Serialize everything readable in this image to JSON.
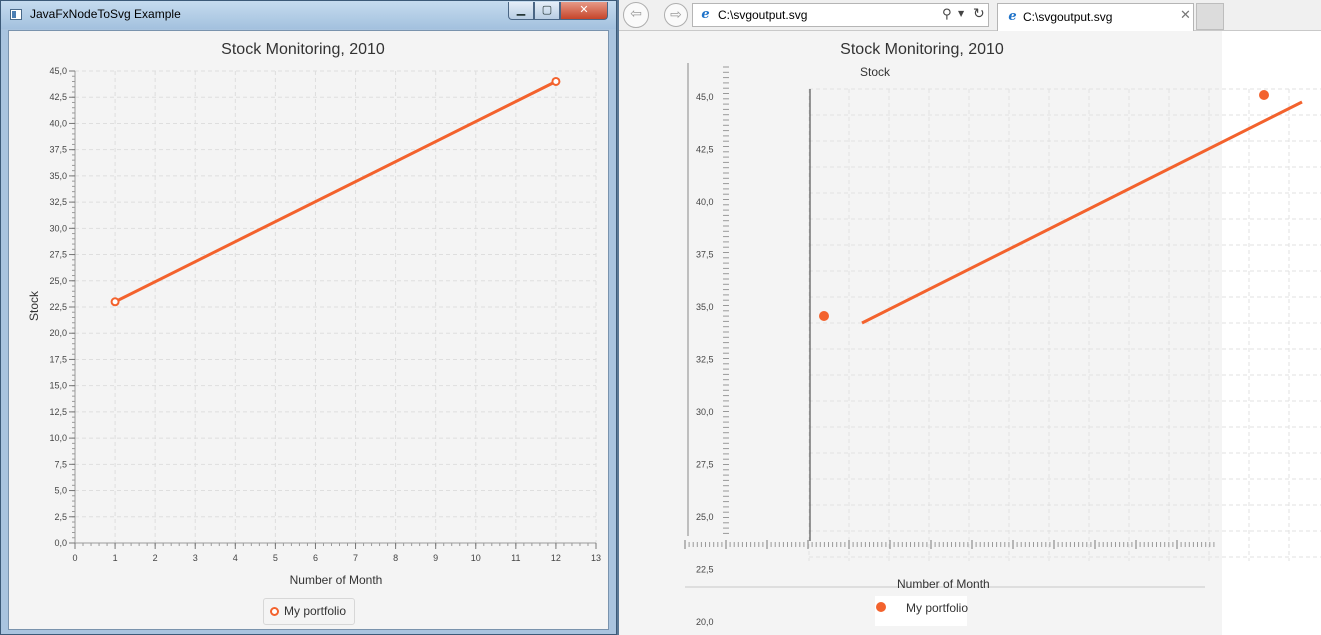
{
  "fx_window": {
    "title": "JavaFxNodeToSvg Example",
    "minimize_glyph": "▁",
    "maximize_glyph": "▢",
    "close_glyph": "✕"
  },
  "fx_chart": {
    "title": "Stock Monitoring, 2010",
    "legend_label": "My portfolio"
  },
  "browser": {
    "back_glyph": "⇦",
    "forward_glyph": "⇨",
    "address": "C:\\svgoutput.svg",
    "tab_title": "C:\\svgoutput.svg",
    "ie_glyph": "e",
    "search_glyph": "⚲",
    "dropdown_glyph": "▼",
    "refresh_glyph": "↻",
    "close_glyph": "✕"
  },
  "svg_render": {
    "title": "Stock Monitoring, 2010",
    "axis_label_top": "Stock",
    "axis_label_bottom": "Number of Month",
    "legend_label": "My portfolio",
    "y_tick_labels": [
      "45,0",
      "42,5",
      "40,0",
      "37,5",
      "35,0",
      "32,5",
      "30,0",
      "27,5",
      "25,0",
      "22,5",
      "20,0"
    ]
  },
  "colors": {
    "series": "#f3622d",
    "grid": "#dedede",
    "plot_bg": "#f4f4f4"
  },
  "chart_data": {
    "type": "line",
    "title": "Stock Monitoring, 2010",
    "xlabel": "Number of Month",
    "ylabel": "Stock",
    "xlim": [
      0,
      13
    ],
    "ylim": [
      0,
      45
    ],
    "x_ticks": [
      0,
      1,
      2,
      3,
      4,
      5,
      6,
      7,
      8,
      9,
      10,
      11,
      12,
      13
    ],
    "x_tick_labels": [
      "0",
      "1",
      "2",
      "3",
      "4",
      "5",
      "6",
      "7",
      "8",
      "9",
      "10",
      "11",
      "12",
      "13"
    ],
    "y_ticks": [
      0,
      2.5,
      5,
      7.5,
      10,
      12.5,
      15,
      17.5,
      20,
      22.5,
      25,
      27.5,
      30,
      32.5,
      35,
      37.5,
      40,
      42.5,
      45
    ],
    "y_tick_labels": [
      "0,0",
      "2,5",
      "5,0",
      "7,5",
      "10,0",
      "12,5",
      "15,0",
      "17,5",
      "20,0",
      "22,5",
      "25,0",
      "27,5",
      "30,0",
      "32,5",
      "35,0",
      "37,5",
      "40,0",
      "42,5",
      "45,0"
    ],
    "grid": true,
    "legend": "bottom",
    "series": [
      {
        "name": "My portfolio",
        "x": [
          1,
          12
        ],
        "y": [
          23,
          44
        ]
      }
    ]
  }
}
